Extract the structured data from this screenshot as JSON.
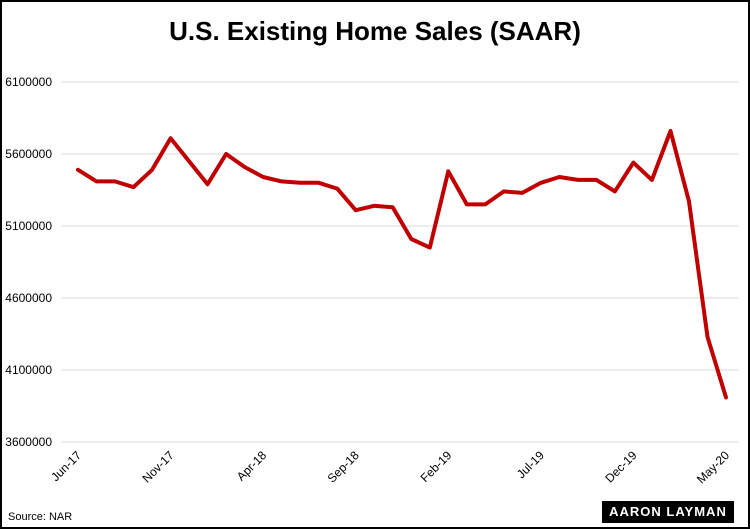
{
  "chart_data": {
    "type": "line",
    "title": "U.S. Existing Home Sales (SAAR)",
    "xlabel": "",
    "ylabel": "",
    "source": "Source: NAR",
    "logo_text": "AARON LAYMAN",
    "line_color": "#c00000",
    "grid": true,
    "ylim": [
      3600000,
      6100000
    ],
    "yticks": [
      "3600000",
      "4100000",
      "4600000",
      "5100000",
      "5600000",
      "6100000"
    ],
    "x_tick_labels": [
      "Jun-17",
      "Nov-17",
      "Apr-18",
      "Sep-18",
      "Feb-19",
      "Jul-19",
      "Dec-19",
      "May-20"
    ],
    "x": [
      "Jun-17",
      "Jul-17",
      "Aug-17",
      "Sep-17",
      "Oct-17",
      "Nov-17",
      "Dec-17",
      "Jan-18",
      "Feb-18",
      "Mar-18",
      "Apr-18",
      "May-18",
      "Jun-18",
      "Jul-18",
      "Aug-18",
      "Sep-18",
      "Oct-18",
      "Nov-18",
      "Dec-18",
      "Jan-19",
      "Feb-19",
      "Mar-19",
      "Apr-19",
      "May-19",
      "Jun-19",
      "Jul-19",
      "Aug-19",
      "Sep-19",
      "Oct-19",
      "Nov-19",
      "Dec-19",
      "Jan-20",
      "Feb-20",
      "Mar-20",
      "Apr-20",
      "May-20"
    ],
    "series": [
      {
        "values": [
          5490000,
          5410000,
          5410000,
          5370000,
          5490000,
          5710000,
          5550000,
          5390000,
          5600000,
          5510000,
          5440000,
          5410000,
          5400000,
          5400000,
          5360000,
          5210000,
          5240000,
          5230000,
          5010000,
          4950000,
          5480000,
          5250000,
          5250000,
          5340000,
          5330000,
          5400000,
          5440000,
          5420000,
          5420000,
          5340000,
          5540000,
          5420000,
          5760000,
          5270000,
          4330000,
          3910000
        ]
      }
    ]
  }
}
